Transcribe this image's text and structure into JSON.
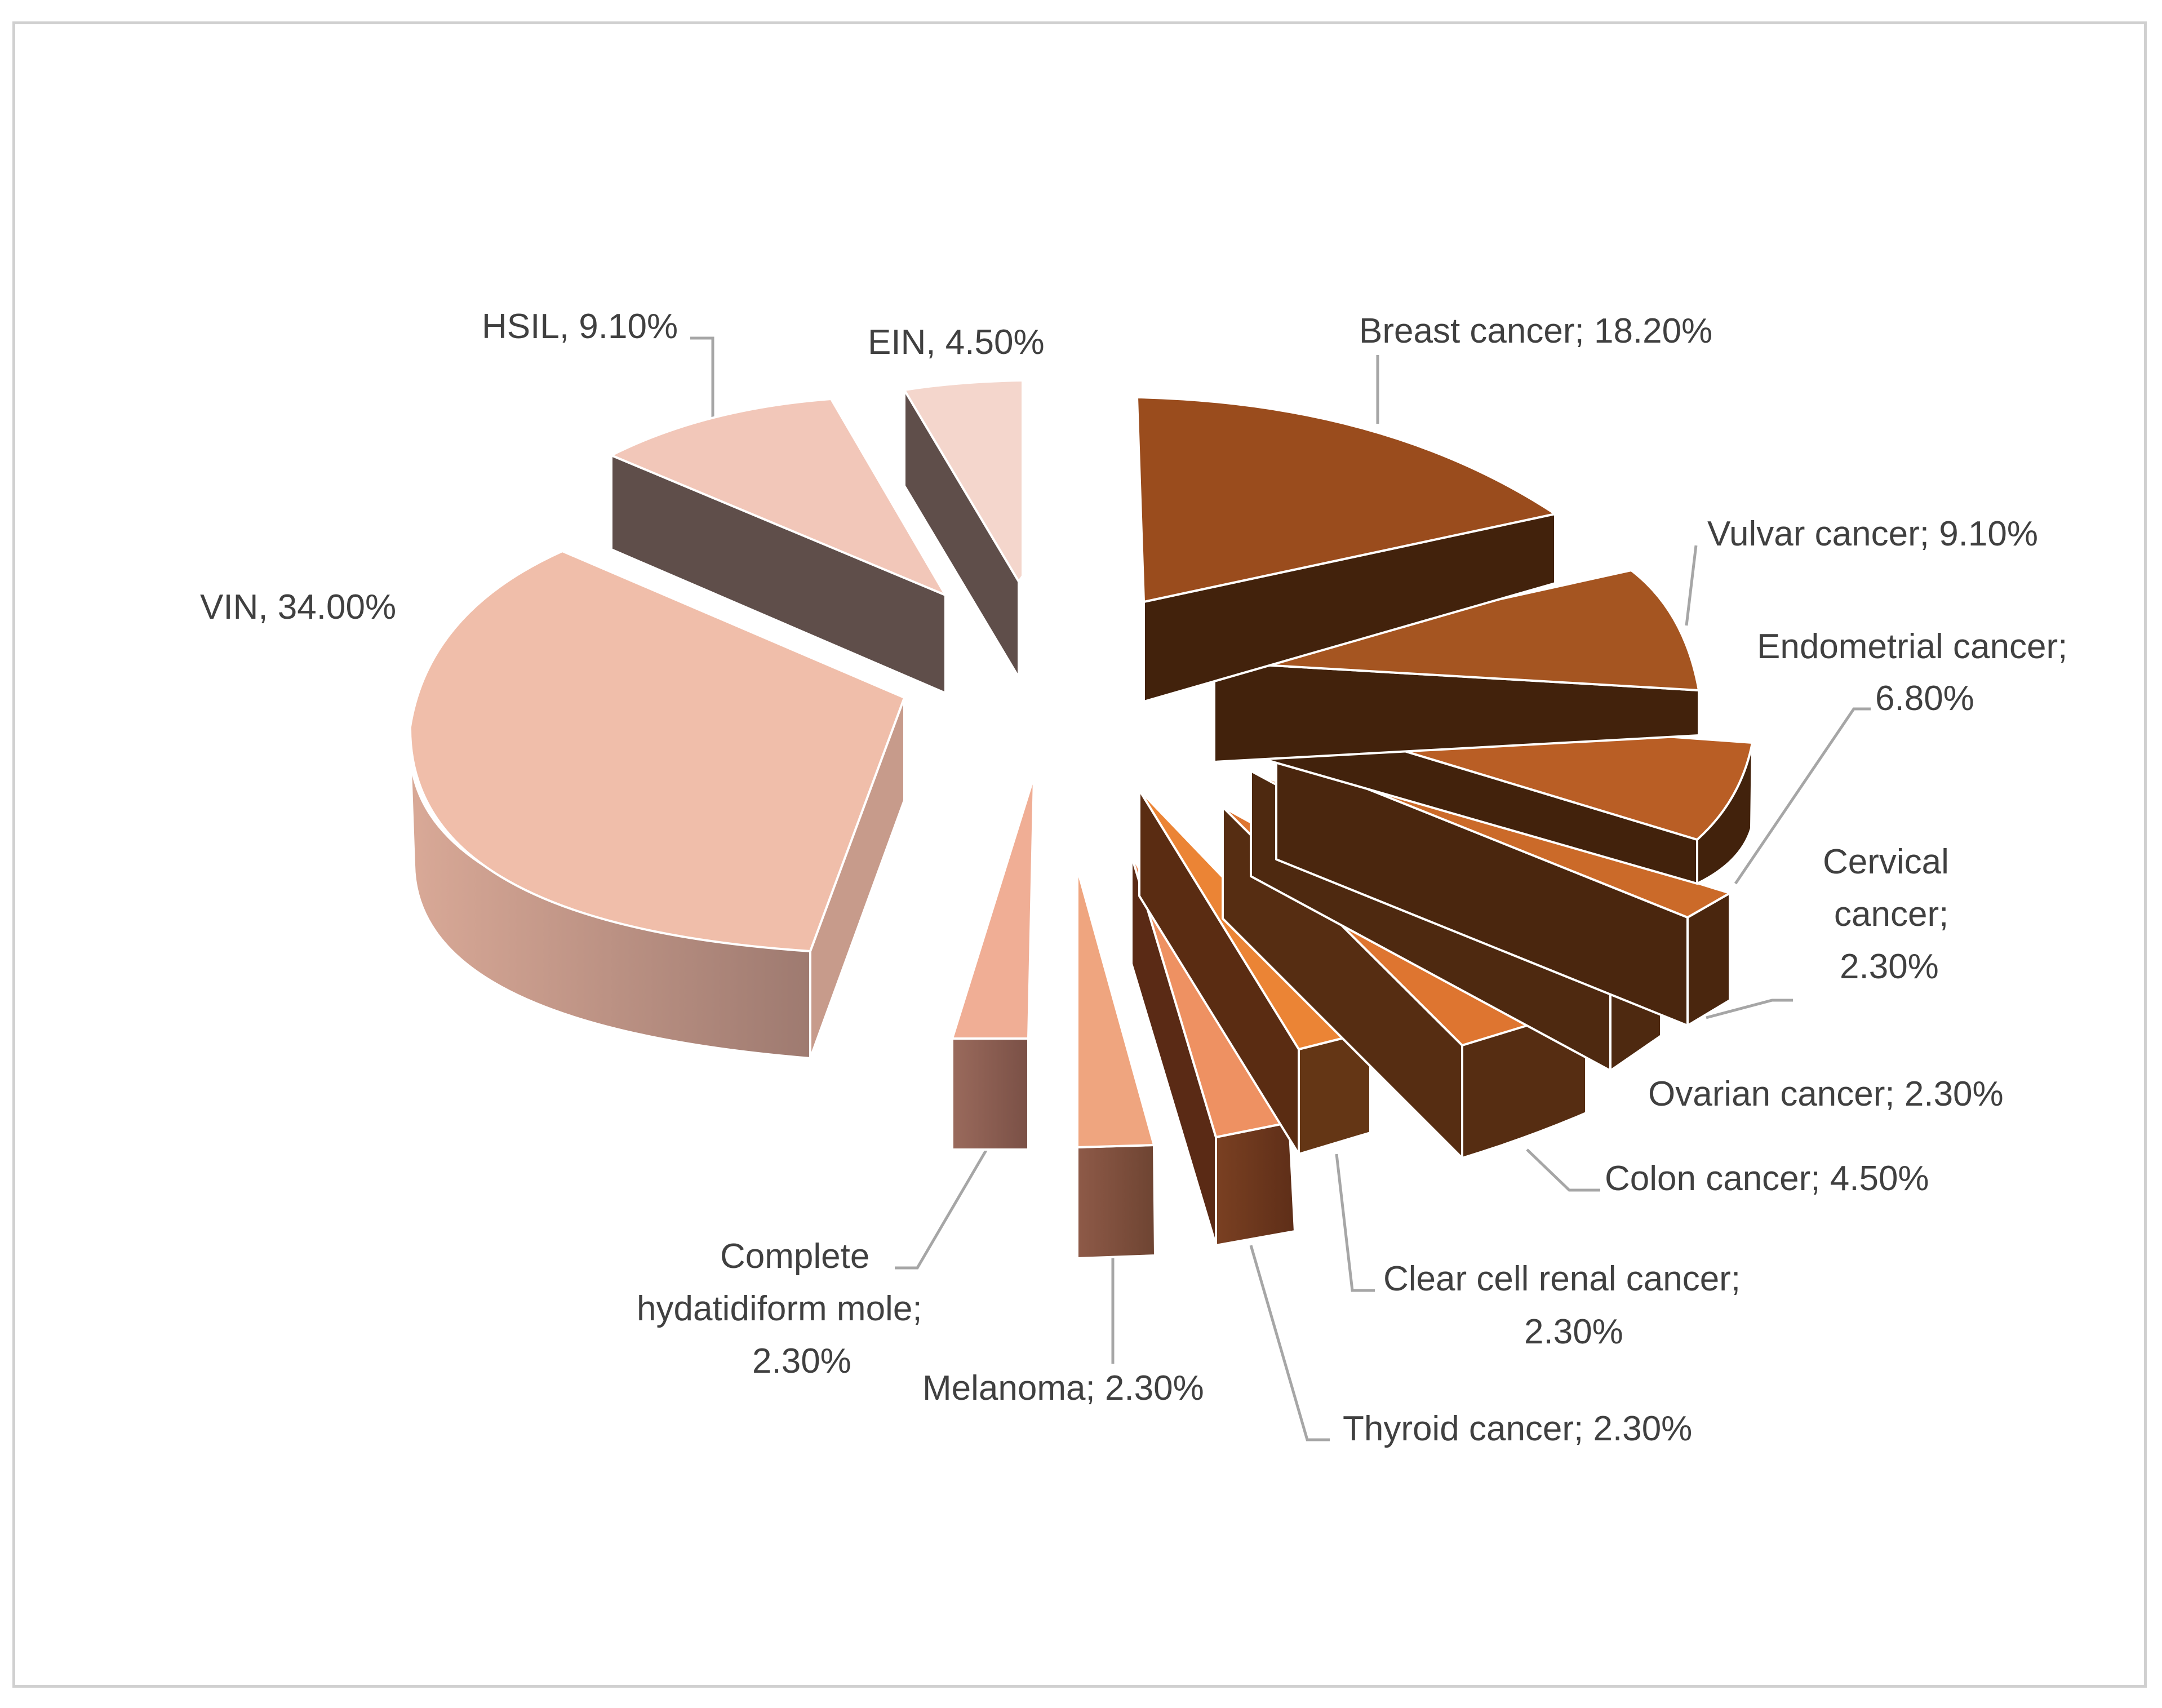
{
  "chart_data": {
    "type": "pie",
    "style": "3d-exploded",
    "title": "",
    "slices": [
      {
        "label": "Breast cancer",
        "value": 18.2,
        "display": "Breast cancer; 18.20%",
        "color": "#9A4C1D",
        "side_color": "#42220C"
      },
      {
        "label": "Vulvar cancer",
        "value": 9.1,
        "display": "Vulvar cancer; 9.10%",
        "color": "#A55521",
        "side_color": "#42220C"
      },
      {
        "label": "Endometrial cancer",
        "value": 6.8,
        "display": "Endometrial cancer; 6.80%",
        "color": "#B95E25",
        "side_color": "#42220C"
      },
      {
        "label": "Cervical cancer",
        "value": 2.3,
        "display": "Cervical cancer; 2.30%",
        "color": "#CB6A29",
        "side_color": "#4A260E"
      },
      {
        "label": "Ovarian cancer",
        "value": 2.3,
        "display": "Ovarian cancer; 2.30%",
        "color": "#D4702C",
        "side_color": "#4E2910"
      },
      {
        "label": "Colon cancer",
        "value": 4.5,
        "display": "Colon cancer; 4.50%",
        "color": "#DE7530",
        "side_color": "#562D12"
      },
      {
        "label": "Clear cell renal cancer",
        "value": 2.3,
        "display": "Clear cell renal cancer; 2.30%",
        "color": "#EB8435",
        "side_color": "#643615"
      },
      {
        "label": "Thyroid cancer",
        "value": 2.3,
        "display": "Thyroid cancer; 2.30%",
        "color": "#EE9162",
        "side_color": "#6E3A21"
      },
      {
        "label": "Melanoma",
        "value": 2.3,
        "display": "Melanoma; 2.30%",
        "color": "#EFA57F",
        "side_color": "#7A5040"
      },
      {
        "label": "Complete hydatidiform mole",
        "value": 2.3,
        "display": "Complete hydatidiform mole; 2.30%",
        "color": "#F0AE95",
        "side_color": "#8E6758"
      },
      {
        "label": "VIN",
        "value": 34.0,
        "display": "VIN, 34.00%",
        "color": "#F0BEAA",
        "side_color": "#B78A7B"
      },
      {
        "label": "HSIL",
        "value": 9.1,
        "display": "HSIL, 9.10%",
        "color": "#F2C7B9",
        "side_color": "#5F4E4A"
      },
      {
        "label": "EIN",
        "value": 4.5,
        "display": "EIN, 4.50%",
        "color": "#F4D6CC",
        "side_color": "#5F4E4A"
      }
    ],
    "legend": "none",
    "data_labels": "outside-with-leader-lines"
  },
  "labels": {
    "breast": "Breast cancer; 18.20%",
    "vulvar": "Vulvar cancer; 9.10%",
    "endometrial_l1": "Endometrial cancer;",
    "endometrial_l2": "6.80%",
    "cervical_l1": "Cervical",
    "cervical_l2": "cancer;",
    "cervical_l3": "2.30%",
    "ovarian": "Ovarian cancer; 2.30%",
    "colon": "Colon cancer; 4.50%",
    "clearcell_l1": "Clear cell renal cancer;",
    "clearcell_l2": "2.30%",
    "thyroid": "Thyroid cancer; 2.30%",
    "melanoma": "Melanoma; 2.30%",
    "mole_l1": "Complete",
    "mole_l2": "hydatidiform mole;",
    "mole_l3": "2.30%",
    "vin": "VIN, 34.00%",
    "hsil": "HSIL, 9.10%",
    "ein": "EIN, 4.50%"
  }
}
